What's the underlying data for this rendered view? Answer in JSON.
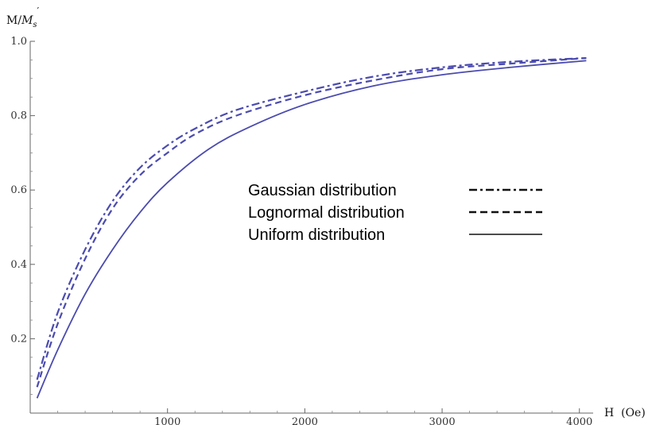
{
  "chart_data": {
    "type": "line",
    "title": "",
    "xlabel": "H  (Oe)",
    "ylabel_prefix": "M/",
    "ylabel_italic": "M",
    "ylabel_sub": "s",
    "ylabel_prime": "′",
    "xlim": [
      0,
      4100
    ],
    "ylim": [
      0,
      1.0
    ],
    "xticks": [
      1000,
      2000,
      3000,
      4000
    ],
    "yticks": [
      0.2,
      0.4,
      0.6,
      0.8,
      1.0
    ],
    "xtick_labels": [
      "1000",
      "2000",
      "3000",
      "4000"
    ],
    "ytick_labels": [
      "0.2",
      "0.4",
      "0.6",
      "0.8",
      "1.0"
    ],
    "grid": false,
    "legend_position": "center-right",
    "series": [
      {
        "name": "Gaussian distribution",
        "style": "dashdot",
        "color": "#4b4bb0",
        "x": [
          50,
          200,
          400,
          600,
          800,
          1000,
          1200,
          1500,
          2000,
          2500,
          3000,
          3500,
          4050
        ],
        "values": [
          0.09,
          0.27,
          0.44,
          0.57,
          0.66,
          0.72,
          0.765,
          0.815,
          0.865,
          0.905,
          0.93,
          0.945,
          0.955
        ]
      },
      {
        "name": "Lognormal distribution",
        "style": "dashed",
        "color": "#4b4bb0",
        "x": [
          50,
          200,
          400,
          600,
          800,
          1000,
          1200,
          1500,
          2000,
          2500,
          3000,
          3500,
          4050
        ],
        "values": [
          0.07,
          0.24,
          0.415,
          0.55,
          0.64,
          0.7,
          0.75,
          0.8,
          0.855,
          0.895,
          0.925,
          0.94,
          0.955
        ]
      },
      {
        "name": "Uniform distribution",
        "style": "solid",
        "color": "#4b4bb0",
        "x": [
          50,
          200,
          400,
          600,
          800,
          1000,
          1300,
          1600,
          2000,
          2500,
          3000,
          3500,
          4050
        ],
        "values": [
          0.04,
          0.17,
          0.32,
          0.44,
          0.54,
          0.62,
          0.71,
          0.77,
          0.83,
          0.88,
          0.91,
          0.93,
          0.948
        ]
      }
    ]
  }
}
